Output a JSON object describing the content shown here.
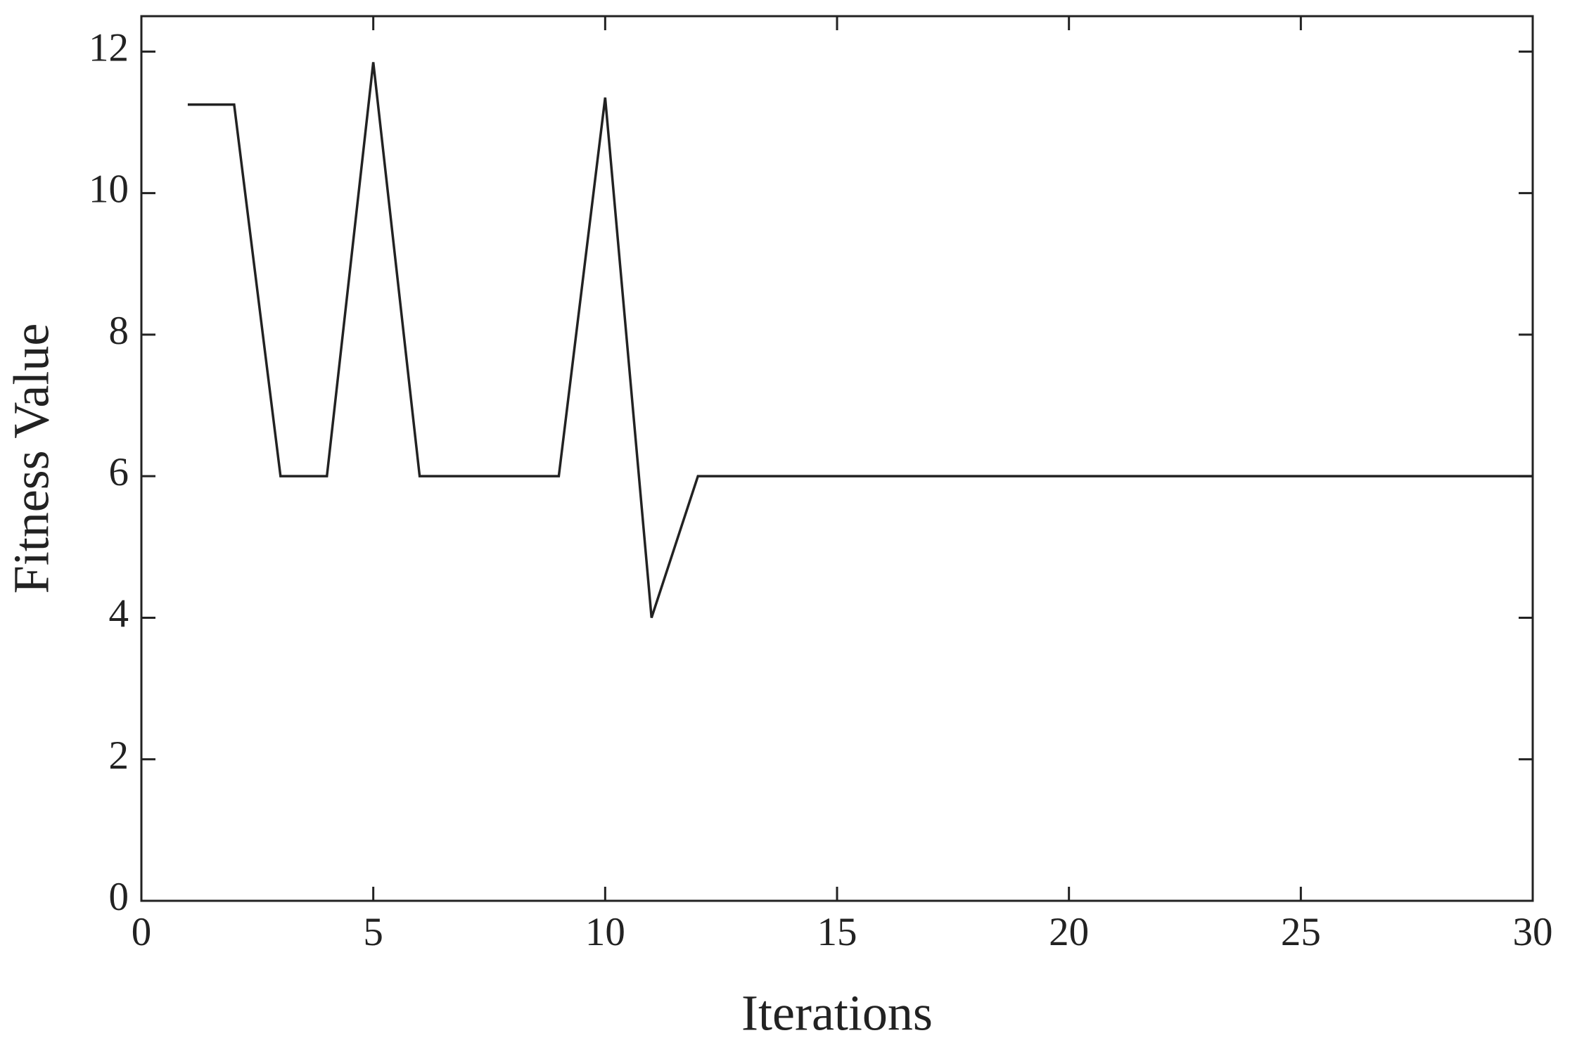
{
  "chart_data": {
    "type": "line",
    "xlabel": "Iterations",
    "ylabel": "Fitness Value",
    "x": [
      1,
      2,
      3,
      4,
      5,
      6,
      7,
      8,
      9,
      10,
      11,
      12,
      13,
      14,
      15,
      16,
      17,
      18,
      19,
      20,
      21,
      22,
      23,
      24,
      25,
      26,
      27,
      28,
      29,
      30
    ],
    "series": [
      {
        "color": "#222222",
        "values": [
          11.25,
          11.25,
          6,
          6,
          11.85,
          6,
          6,
          6,
          6,
          11.35,
          4,
          6,
          6,
          6,
          6,
          6,
          6,
          6,
          6,
          6,
          6,
          6,
          6,
          6,
          6,
          6,
          6,
          6,
          6,
          6
        ]
      }
    ],
    "xlim": [
      0,
      30
    ],
    "xticks": [
      0,
      5,
      10,
      15,
      20,
      25,
      30
    ],
    "ylim": [
      0,
      12.5
    ],
    "yticks": [
      0,
      2,
      4,
      6,
      8,
      10,
      12
    ],
    "grid": false
  }
}
